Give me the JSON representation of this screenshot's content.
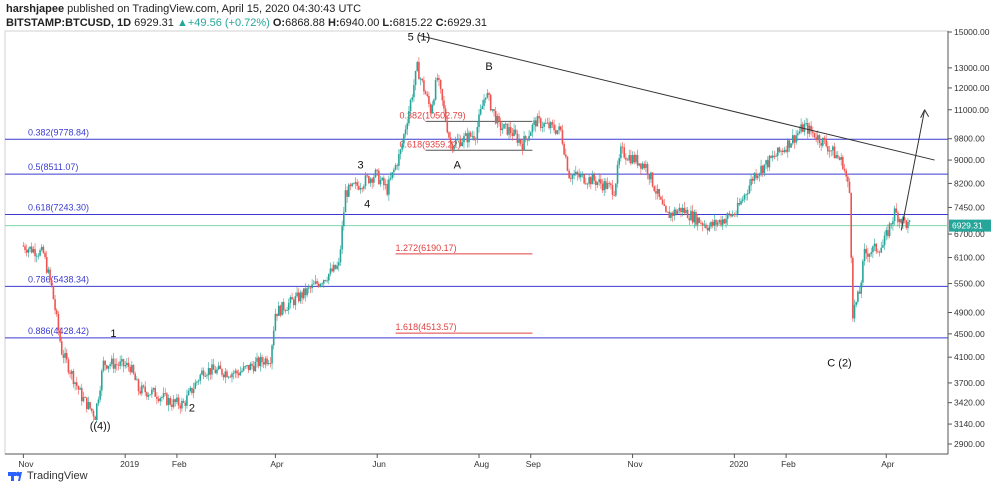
{
  "header": {
    "line1": {
      "author": "harshjapee",
      "published": "published on TradingView.com, April 15, 2020 04:30:43 UTC"
    },
    "line2": {
      "symbol": "BITSTAMP:BTCUSD, 1D",
      "last": "6929.31",
      "change": "+49.56 (+0.72%)",
      "o_label": "O:",
      "o": "6868.88",
      "h_label": "H:",
      "h": "6940.00",
      "l_label": "L:",
      "l": "6815.22",
      "c_label": "C:",
      "c": "6929.31"
    }
  },
  "footer": {
    "brand": "TradingView"
  },
  "colors": {
    "up": "#26a69a",
    "down": "#ef5350",
    "fib_blue": "#3b3bd1",
    "fib_red": "#e04040",
    "price_tag": "#26a69a"
  },
  "chart_data": {
    "type": "candlestick",
    "title": "",
    "price_scale": "log",
    "x_ticks": [
      {
        "label": "Nov",
        "date": "2018-11-01"
      },
      {
        "label": "2019",
        "date": "2019-01-01"
      },
      {
        "label": "Feb",
        "date": "2019-02-01"
      },
      {
        "label": "Apr",
        "date": "2019-04-01"
      },
      {
        "label": "Jun",
        "date": "2019-06-01"
      },
      {
        "label": "Aug",
        "date": "2019-08-01"
      },
      {
        "label": "Sep",
        "date": "2019-09-01"
      },
      {
        "label": "Nov",
        "date": "2019-11-01"
      },
      {
        "label": "2020",
        "date": "2020-01-01"
      },
      {
        "label": "Feb",
        "date": "2020-02-01"
      },
      {
        "label": "Apr",
        "date": "2020-04-01"
      }
    ],
    "y_ticks": [
      "15000.00",
      "13000.00",
      "12000.00",
      "11000.00",
      "9800.00",
      "9000.00",
      "8200.00",
      "7450.00",
      "6700.00",
      "6100.00",
      "5500.00",
      "4900.00",
      "4500.00",
      "4100.00",
      "3700.00",
      "3420.00",
      "3140.00",
      "2900.00"
    ],
    "last_price": 6929.31,
    "price_path": [
      [
        "2018-11-01",
        6400
      ],
      [
        "2018-11-14",
        6200
      ],
      [
        "2018-11-19",
        5400
      ],
      [
        "2018-11-25",
        4200
      ],
      [
        "2018-12-07",
        3500
      ],
      [
        "2018-12-15",
        3250
      ],
      [
        "2018-12-20",
        4000
      ],
      [
        "2018-12-24",
        4000
      ],
      [
        "2019-01-05",
        3950
      ],
      [
        "2019-01-10",
        3600
      ],
      [
        "2019-01-20",
        3550
      ],
      [
        "2019-01-30",
        3420
      ],
      [
        "2019-02-06",
        3400
      ],
      [
        "2019-02-18",
        3900
      ],
      [
        "2019-03-10",
        3850
      ],
      [
        "2019-03-30",
        4100
      ],
      [
        "2019-04-02",
        4900
      ],
      [
        "2019-04-20",
        5300
      ],
      [
        "2019-05-10",
        5900
      ],
      [
        "2019-05-14",
        7900
      ],
      [
        "2019-05-20",
        8100
      ],
      [
        "2019-05-26",
        8300
      ],
      [
        "2019-06-01",
        8500
      ],
      [
        "2019-06-08",
        8000
      ],
      [
        "2019-06-16",
        9300
      ],
      [
        "2019-06-26",
        13000
      ],
      [
        "2019-07-04",
        11000
      ],
      [
        "2019-07-08",
        12500
      ],
      [
        "2019-07-16",
        9600
      ],
      [
        "2019-07-24",
        9800
      ],
      [
        "2019-07-31",
        10000
      ],
      [
        "2019-08-06",
        11800
      ],
      [
        "2019-08-14",
        10300
      ],
      [
        "2019-08-21",
        10100
      ],
      [
        "2019-08-28",
        9600
      ],
      [
        "2019-09-05",
        10500
      ],
      [
        "2019-09-20",
        10100
      ],
      [
        "2019-09-25",
        8500
      ],
      [
        "2019-10-10",
        8300
      ],
      [
        "2019-10-22",
        8000
      ],
      [
        "2019-10-26",
        9300
      ],
      [
        "2019-11-10",
        8800
      ],
      [
        "2019-11-22",
        7200
      ],
      [
        "2019-12-01",
        7400
      ],
      [
        "2019-12-18",
        6900
      ],
      [
        "2020-01-03",
        7300
      ],
      [
        "2020-01-14",
        8500
      ],
      [
        "2020-01-31",
        9400
      ],
      [
        "2020-02-13",
        10300
      ],
      [
        "2020-02-24",
        9700
      ],
      [
        "2020-03-07",
        8900
      ],
      [
        "2020-03-11",
        7900
      ],
      [
        "2020-03-13",
        4900
      ],
      [
        "2020-03-17",
        5300
      ],
      [
        "2020-03-20",
        6200
      ],
      [
        "2020-03-31",
        6400
      ],
      [
        "2020-04-07",
        7300
      ],
      [
        "2020-04-15",
        6929.31
      ]
    ],
    "fib_levels_blue": [
      {
        "label": "0.382(9778.84)",
        "price": 9778.84
      },
      {
        "label": "0.5(8511.07)",
        "price": 8511.07
      },
      {
        "label": "0.618(7243.30)",
        "price": 7243.3
      },
      {
        "label": "0.786(5438.34)",
        "price": 5438.34
      },
      {
        "label": "0.886(4428.42)",
        "price": 4428.42
      }
    ],
    "fib_levels_red": [
      {
        "label": "0.382(10502.79)",
        "price": 10502.79
      },
      {
        "label": "0.618(9359.22)",
        "price": 9359.22
      },
      {
        "label": "1.272(6190.17)",
        "price": 6190.17
      },
      {
        "label": "1.618(4513.57)",
        "price": 4513.57
      }
    ],
    "wave_labels": [
      {
        "label": "5 (1)",
        "date": "2019-06-26",
        "price": 14500
      },
      {
        "label": "B",
        "date": "2019-08-07",
        "price": 12900
      },
      {
        "label": "A",
        "date": "2019-07-19",
        "price": 8700
      },
      {
        "label": "3",
        "date": "2019-05-22",
        "price": 8700
      },
      {
        "label": "4",
        "date": "2019-05-26",
        "price": 7450
      },
      {
        "label": "1",
        "date": "2018-12-25",
        "price": 4440
      },
      {
        "label": "2",
        "date": "2019-02-10",
        "price": 3300
      },
      {
        "label": "((4))",
        "date": "2018-12-17",
        "price": 3070
      },
      {
        "label": "C (2)",
        "date": "2020-03-04",
        "price": 3950
      }
    ],
    "trendlines": [
      {
        "from": [
          "2019-06-26",
          14800
        ],
        "to": [
          "2020-04-30",
          9000
        ]
      },
      {
        "from": [
          "2020-04-10",
          6800
        ],
        "to": [
          "2020-04-24",
          11000
        ]
      }
    ]
  }
}
